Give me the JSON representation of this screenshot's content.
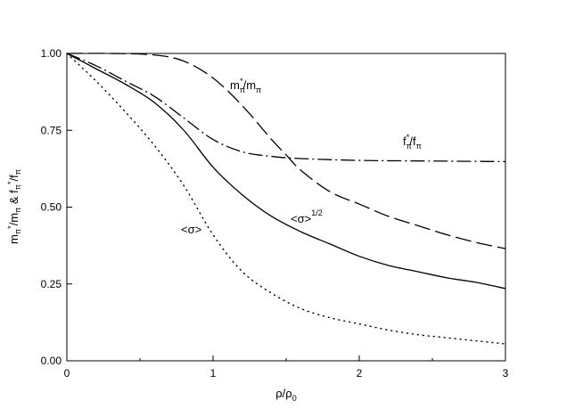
{
  "chart_data": {
    "type": "line",
    "title": "",
    "xlabel": "ρ/ρ₀",
    "ylabel": "mπ*/mπ & fπ*/fπ",
    "xlim": [
      0,
      3
    ],
    "ylim": [
      0,
      1
    ],
    "grid": false,
    "legend": "none",
    "x_ticks": [
      "0",
      "1",
      "2",
      "3"
    ],
    "y_ticks": [
      "0.00",
      "0.25",
      "0.50",
      "0.75",
      "1.00"
    ],
    "series": [
      {
        "name": "mπ*/mπ",
        "style": "dashed-long",
        "x": [
          0,
          0.3,
          0.6,
          0.8,
          1.0,
          1.2,
          1.4,
          1.5,
          1.6,
          1.8,
          2.0,
          2.2,
          2.4,
          2.6,
          2.8,
          3.0
        ],
        "y": [
          1.0,
          1.0,
          0.995,
          0.975,
          0.92,
          0.83,
          0.72,
          0.67,
          0.62,
          0.55,
          0.51,
          0.47,
          0.44,
          0.41,
          0.385,
          0.365
        ]
      },
      {
        "name": "fπ*/fπ",
        "style": "dash-dot",
        "x": [
          0,
          0.2,
          0.4,
          0.6,
          0.8,
          1.0,
          1.2,
          1.4,
          1.6,
          2.0,
          2.5,
          3.0
        ],
        "y": [
          1.0,
          0.96,
          0.91,
          0.86,
          0.79,
          0.72,
          0.68,
          0.665,
          0.658,
          0.652,
          0.65,
          0.648
        ]
      },
      {
        "name": "<σ>^1/2",
        "style": "solid",
        "x": [
          0,
          0.2,
          0.4,
          0.6,
          0.8,
          1.0,
          1.2,
          1.4,
          1.6,
          1.8,
          2.0,
          2.2,
          2.4,
          2.6,
          2.8,
          3.0
        ],
        "y": [
          1.0,
          0.95,
          0.9,
          0.84,
          0.75,
          0.63,
          0.54,
          0.47,
          0.42,
          0.38,
          0.34,
          0.31,
          0.29,
          0.27,
          0.255,
          0.235
        ]
      },
      {
        "name": "<σ>",
        "style": "dotted",
        "x": [
          0,
          0.2,
          0.4,
          0.6,
          0.8,
          1.0,
          1.2,
          1.4,
          1.6,
          1.8,
          2.0,
          2.2,
          2.4,
          2.6,
          2.8,
          3.0
        ],
        "y": [
          1.0,
          0.91,
          0.81,
          0.7,
          0.57,
          0.41,
          0.29,
          0.22,
          0.17,
          0.14,
          0.12,
          0.1,
          0.085,
          0.075,
          0.065,
          0.055
        ]
      }
    ],
    "annotations": {
      "m_label_main": "m",
      "m_label_sup": "*",
      "m_label_sub": "π",
      "m_label_den": "/m",
      "m_label_den_sub": "π",
      "f_label_main": "f",
      "f_label_sup": "*",
      "f_label_sub": "π",
      "f_label_den": "/f",
      "f_label_den_sub": "π",
      "sqrt_sigma_label": "<σ>",
      "sqrt_sigma_sup": "1/2",
      "sigma_label": "<σ>"
    }
  }
}
